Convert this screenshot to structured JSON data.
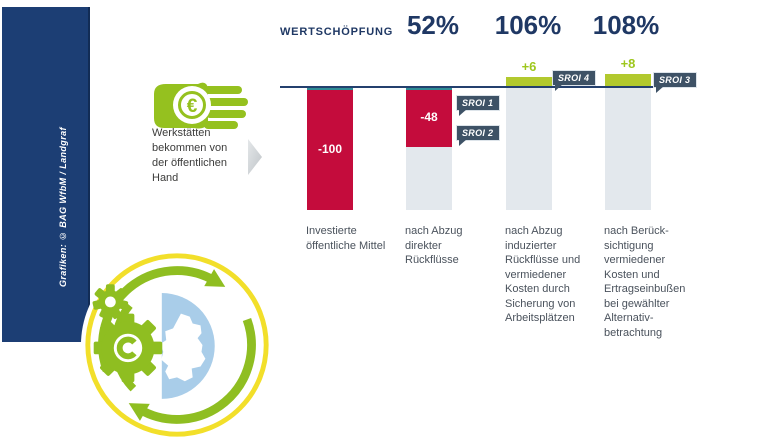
{
  "sidebar": {
    "credit": "Grafiken: © BAG WfbM / Landgraf"
  },
  "intro": {
    "text": "Werkstätten\nbekommen von\nder öffentlichen\nHand",
    "icon": "hand-with-euro-coin",
    "euro_symbol": "€"
  },
  "chart_data": {
    "type": "bar",
    "title": "WERTSCHÖPFUNG",
    "baseline_value": 0,
    "ylim": [
      -100,
      10
    ],
    "grid": false,
    "legend": "none",
    "unit": "index (invested public funds = -100)",
    "categories": [
      "Investierte öffentliche Mittel",
      "nach Abzug direkter Rückflüsse",
      "nach Abzug induzierter Rückflüsse und vermiedener Kosten durch Sicherung von Arbeitsplätzen",
      "nach Berücksichtigung vermiedener Kosten und Ertragseinbußen bei gewählter Alternativbetrachtung"
    ],
    "bars": [
      {
        "label": "Investierte\nöffentliche Mittel",
        "value": -100,
        "display": "-100",
        "wertschoepfung": null,
        "badges": []
      },
      {
        "label": "nach Abzug\ndirekter\nRückflüsse",
        "value": -48,
        "display": "-48",
        "wertschoepfung": "52%",
        "badges": [
          "SROI 1",
          "SROI 2"
        ]
      },
      {
        "label": "nach Abzug\ninduzierter\nRückflüsse und\nvermiedener\nKosten durch\nSicherung von\nArbeitsplätzen",
        "value": 6,
        "display": "+6",
        "wertschoepfung": "106%",
        "badges": [
          "SROI 4"
        ]
      },
      {
        "label": "nach Berück-\nsichtigung\nvermiedener\nKosten und\nErtragseinbußen\nbei gewählter\nAlternativ-\nbetrachtung",
        "value": 8,
        "display": "+8",
        "wertschoepfung": "108%",
        "badges": [
          "SROI 3"
        ]
      }
    ]
  },
  "colors": {
    "navy": "#1f3864",
    "red_bar": "#c40c3c",
    "teal_cap": "#2f8d96",
    "green_bar": "#b2c92e",
    "green_icon": "#95c11f",
    "ghost_bar": "#e3e8ed",
    "badge_bg": "#3e5266",
    "sidebar_bg": "#1c3e74",
    "logo_yellow": "#f2df2a",
    "logo_blue": "#a9cde9"
  }
}
